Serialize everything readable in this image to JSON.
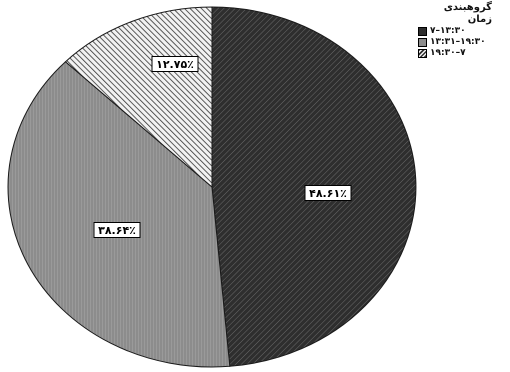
{
  "chart_data": {
    "type": "pie",
    "legend": {
      "title": "گروهبندی زمان",
      "placement": "top-right"
    },
    "slices": [
      {
        "name": "۷–۱۳:۳۰",
        "label": "۴۸.۶۱٪",
        "value": 48.61,
        "color": "#2e2e2e"
      },
      {
        "name": "۱۳:۳۱–۱۹:۳۰",
        "label": "۳۸.۶۴٪",
        "value": 38.64,
        "color": "#8c8c8c"
      },
      {
        "name": "۱۹:۳۰–۷",
        "label": "۱۲.۷۵٪",
        "value": 12.75,
        "color": "#555555"
      }
    ]
  }
}
